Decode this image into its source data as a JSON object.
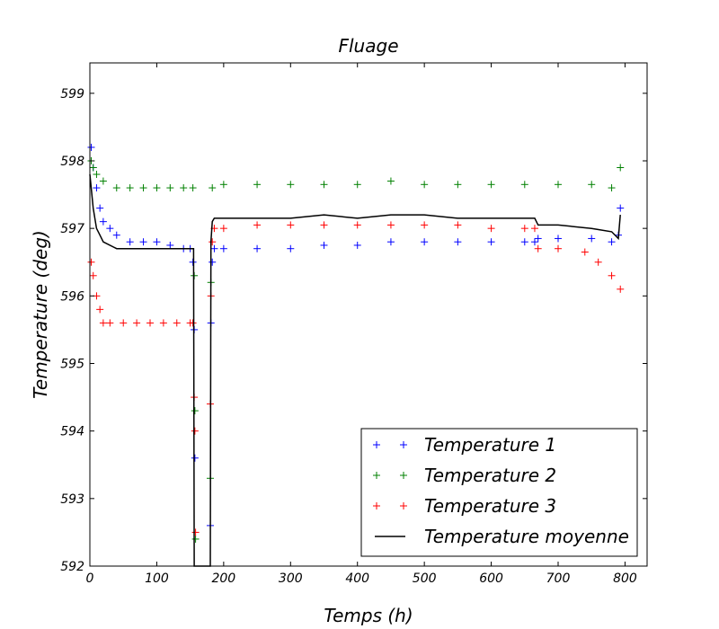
{
  "chart_data": {
    "type": "scatter",
    "title": "Fluage",
    "xlabel": "Temps (h)",
    "ylabel": "Temperature (deg)",
    "xlim": [
      0,
      833
    ],
    "ylim": [
      592,
      599.45
    ],
    "x_ticks": [
      0,
      100,
      200,
      300,
      400,
      500,
      600,
      700,
      800
    ],
    "x_tick_labels": [
      "0",
      "100",
      "200",
      "300",
      "400",
      "500",
      "600",
      "700",
      "800"
    ],
    "y_ticks": [
      592,
      593,
      594,
      595,
      596,
      597,
      598,
      599
    ],
    "y_tick_labels": [
      "592",
      "593",
      "594",
      "595",
      "596",
      "597",
      "598",
      "599"
    ],
    "grid": false,
    "legend_position": "lower-right",
    "series": [
      {
        "name": "Temperature 1",
        "marker": "+",
        "color": "#0000ff",
        "points": [
          [
            2,
            598.2
          ],
          [
            5,
            597.9
          ],
          [
            10,
            597.6
          ],
          [
            15,
            597.3
          ],
          [
            20,
            597.1
          ],
          [
            30,
            597.0
          ],
          [
            40,
            596.9
          ],
          [
            60,
            596.8
          ],
          [
            80,
            596.8
          ],
          [
            100,
            596.8
          ],
          [
            120,
            596.75
          ],
          [
            140,
            596.7
          ],
          [
            150,
            596.7
          ],
          [
            154,
            596.5
          ],
          [
            156,
            595.5
          ],
          [
            157,
            593.6
          ],
          [
            180,
            592.6
          ],
          [
            181,
            595.6
          ],
          [
            183,
            596.5
          ],
          [
            186,
            596.7
          ],
          [
            200,
            596.7
          ],
          [
            250,
            596.7
          ],
          [
            300,
            596.7
          ],
          [
            350,
            596.75
          ],
          [
            400,
            596.75
          ],
          [
            450,
            596.8
          ],
          [
            500,
            596.8
          ],
          [
            550,
            596.8
          ],
          [
            600,
            596.8
          ],
          [
            650,
            596.8
          ],
          [
            665,
            596.8
          ],
          [
            670,
            596.85
          ],
          [
            700,
            596.85
          ],
          [
            750,
            596.85
          ],
          [
            780,
            596.8
          ],
          [
            790,
            596.9
          ],
          [
            793,
            597.3
          ]
        ]
      },
      {
        "name": "Temperature 2",
        "marker": "+",
        "color": "#008000",
        "points": [
          [
            2,
            598.0
          ],
          [
            5,
            597.9
          ],
          [
            10,
            597.8
          ],
          [
            20,
            597.7
          ],
          [
            40,
            597.6
          ],
          [
            60,
            597.6
          ],
          [
            80,
            597.6
          ],
          [
            100,
            597.6
          ],
          [
            120,
            597.6
          ],
          [
            140,
            597.6
          ],
          [
            154,
            597.6
          ],
          [
            156,
            596.3
          ],
          [
            157,
            594.3
          ],
          [
            158,
            592.4
          ],
          [
            180,
            593.3
          ],
          [
            181,
            596.2
          ],
          [
            183,
            597.6
          ],
          [
            200,
            597.65
          ],
          [
            250,
            597.65
          ],
          [
            300,
            597.65
          ],
          [
            350,
            597.65
          ],
          [
            400,
            597.65
          ],
          [
            450,
            597.7
          ],
          [
            500,
            597.65
          ],
          [
            550,
            597.65
          ],
          [
            600,
            597.65
          ],
          [
            650,
            597.65
          ],
          [
            700,
            597.65
          ],
          [
            750,
            597.65
          ],
          [
            780,
            597.6
          ],
          [
            793,
            597.9
          ]
        ]
      },
      {
        "name": "Temperature 3",
        "marker": "+",
        "color": "#ff0000",
        "points": [
          [
            2,
            596.5
          ],
          [
            5,
            596.3
          ],
          [
            10,
            596.0
          ],
          [
            15,
            595.8
          ],
          [
            20,
            595.6
          ],
          [
            30,
            595.6
          ],
          [
            50,
            595.6
          ],
          [
            70,
            595.6
          ],
          [
            90,
            595.6
          ],
          [
            110,
            595.6
          ],
          [
            130,
            595.6
          ],
          [
            150,
            595.6
          ],
          [
            154,
            595.6
          ],
          [
            156,
            594.5
          ],
          [
            157,
            594.0
          ],
          [
            158,
            592.5
          ],
          [
            180,
            594.4
          ],
          [
            181,
            596.0
          ],
          [
            183,
            596.8
          ],
          [
            186,
            597.0
          ],
          [
            200,
            597.0
          ],
          [
            250,
            597.05
          ],
          [
            300,
            597.05
          ],
          [
            350,
            597.05
          ],
          [
            400,
            597.05
          ],
          [
            450,
            597.05
          ],
          [
            500,
            597.05
          ],
          [
            550,
            597.05
          ],
          [
            600,
            597.0
          ],
          [
            650,
            597.0
          ],
          [
            665,
            597.0
          ],
          [
            670,
            596.7
          ],
          [
            700,
            596.7
          ],
          [
            740,
            596.65
          ],
          [
            760,
            596.5
          ],
          [
            780,
            596.3
          ],
          [
            793,
            596.1
          ]
        ]
      },
      {
        "name": "Temperature moyenne",
        "marker": "line",
        "color": "#000000",
        "points": [
          [
            0,
            597.8
          ],
          [
            5,
            597.3
          ],
          [
            10,
            597.0
          ],
          [
            15,
            596.9
          ],
          [
            20,
            596.8
          ],
          [
            40,
            596.7
          ],
          [
            80,
            596.7
          ],
          [
            120,
            596.7
          ],
          [
            150,
            596.7
          ],
          [
            155,
            596.7
          ],
          [
            156,
            592.0
          ],
          [
            179,
            592.0
          ],
          [
            180,
            592.0
          ],
          [
            181,
            596.8
          ],
          [
            183,
            597.1
          ],
          [
            186,
            597.15
          ],
          [
            200,
            597.15
          ],
          [
            250,
            597.15
          ],
          [
            300,
            597.15
          ],
          [
            350,
            597.2
          ],
          [
            400,
            597.15
          ],
          [
            450,
            597.2
          ],
          [
            500,
            597.2
          ],
          [
            550,
            597.15
          ],
          [
            600,
            597.15
          ],
          [
            665,
            597.15
          ],
          [
            670,
            597.05
          ],
          [
            700,
            597.05
          ],
          [
            750,
            597.0
          ],
          [
            780,
            596.95
          ],
          [
            790,
            596.85
          ],
          [
            793,
            597.2
          ]
        ]
      }
    ]
  }
}
